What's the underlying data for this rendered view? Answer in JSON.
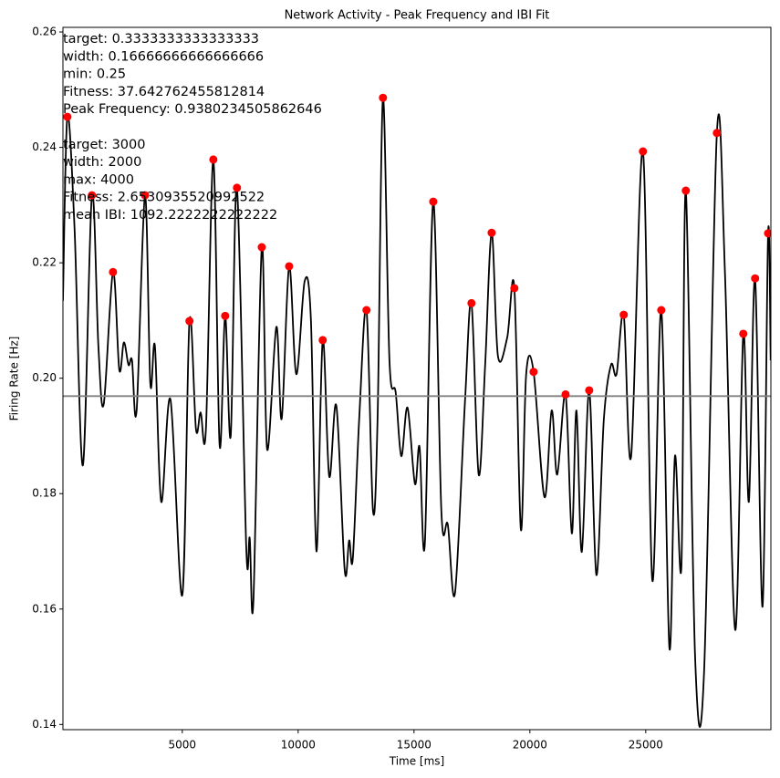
{
  "chart_data": {
    "type": "line",
    "title": "Network Activity - Peak Frequency and IBI Fit",
    "xlabel": "Time [ms]",
    "ylabel": "Firing Rate [Hz]",
    "annotations": [
      [
        "target: 0.3333333333333333",
        "width: 0.16666666666666666",
        "min: 0.25",
        "Fitness: 37.642762455812814",
        "Peak Frequency: 0.9380234505862646"
      ],
      [
        "target: 3000",
        "width: 2000",
        "max: 4000",
        "Fitness: 2.6530935520992522",
        "mean IBI: 1092.2222222222222"
      ]
    ],
    "xlim": [
      -150,
      30400
    ],
    "ylim": [
      0.1391,
      0.2608
    ],
    "xticks": [
      5000,
      10000,
      15000,
      20000,
      25000
    ],
    "yticks": [
      0.14,
      0.16,
      0.18,
      {
        "value": 0.2,
        "label": "0.20"
      },
      0.22,
      0.24,
      0.26
    ],
    "line": {
      "color": "#000000",
      "x": [
        -150,
        40,
        350,
        710,
        1100,
        1380,
        1610,
        2010,
        2280,
        2480,
        2680,
        2830,
        3030,
        3390,
        3620,
        3820,
        4090,
        4490,
        5000,
        5310,
        5590,
        5790,
        6020,
        6340,
        6610,
        6850,
        7090,
        7360,
        7760,
        7910,
        8070,
        8430,
        8660,
        9060,
        9290,
        9610,
        9920,
        10280,
        10550,
        10790,
        11060,
        11340,
        11650,
        12010,
        12200,
        12360,
        12640,
        12950,
        13230,
        13430,
        13660,
        13940,
        14210,
        14450,
        14720,
        15040,
        15240,
        15470,
        15830,
        16180,
        16460,
        16770,
        17200,
        17480,
        17790,
        18070,
        18350,
        18620,
        19020,
        19330,
        19610,
        19840,
        20160,
        20630,
        20940,
        21180,
        21540,
        21810,
        22010,
        22240,
        22560,
        22870,
        23190,
        23500,
        23740,
        24050,
        24370,
        24880,
        25280,
        25670,
        26020,
        26260,
        26540,
        26730,
        27130,
        27520,
        28070,
        28420,
        28860,
        29210,
        29450,
        29720,
        30040,
        30280,
        30390
      ],
      "values": [
        0.2134,
        0.2453,
        0.226,
        0.1849,
        0.2317,
        0.2055,
        0.1955,
        0.2184,
        0.2015,
        0.2062,
        0.2023,
        0.2031,
        0.1944,
        0.2317,
        0.1991,
        0.2055,
        0.1786,
        0.1963,
        0.1624,
        0.2099,
        0.1912,
        0.1941,
        0.1912,
        0.2379,
        0.1884,
        0.2108,
        0.19,
        0.233,
        0.1707,
        0.1723,
        0.1615,
        0.2227,
        0.1877,
        0.2089,
        0.193,
        0.2194,
        0.2007,
        0.2168,
        0.2102,
        0.17,
        0.2066,
        0.183,
        0.1952,
        0.1667,
        0.1719,
        0.1688,
        0.1934,
        0.2118,
        0.177,
        0.1934,
        0.2486,
        0.2031,
        0.1975,
        0.1865,
        0.1949,
        0.1817,
        0.1881,
        0.1715,
        0.2306,
        0.177,
        0.1746,
        0.1628,
        0.196,
        0.213,
        0.1833,
        0.2023,
        0.2252,
        0.2039,
        0.207,
        0.2156,
        0.1738,
        0.2007,
        0.2011,
        0.1794,
        0.1944,
        0.1833,
        0.1972,
        0.1731,
        0.1944,
        0.1699,
        0.1979,
        0.1659,
        0.1928,
        0.2023,
        0.2007,
        0.211,
        0.1865,
        0.2393,
        0.1651,
        0.2118,
        0.1533,
        0.1865,
        0.1675,
        0.2325,
        0.1517,
        0.1494,
        0.2425,
        0.2181,
        0.1564,
        0.2077,
        0.1786,
        0.2173,
        0.1604,
        0.2251,
        0.2031
      ]
    },
    "peaks": {
      "color": "#ff0000",
      "x": [
        40,
        1100,
        2010,
        3390,
        5310,
        6340,
        6850,
        7360,
        8430,
        9610,
        11060,
        12950,
        13660,
        15830,
        17480,
        18350,
        19330,
        20160,
        21540,
        22560,
        24050,
        24880,
        25670,
        26730,
        28070,
        29210,
        29720,
        30280
      ],
      "values": [
        0.2453,
        0.2317,
        0.2184,
        0.2317,
        0.2099,
        0.2379,
        0.2108,
        0.233,
        0.2227,
        0.2194,
        0.2066,
        0.2118,
        0.2486,
        0.2306,
        0.213,
        0.2252,
        0.2156,
        0.2011,
        0.1972,
        0.1979,
        0.211,
        0.2393,
        0.2118,
        0.2325,
        0.2425,
        0.2077,
        0.2173,
        0.2251
      ]
    },
    "threshold": {
      "value": 0.1969,
      "color": "#808080"
    }
  }
}
